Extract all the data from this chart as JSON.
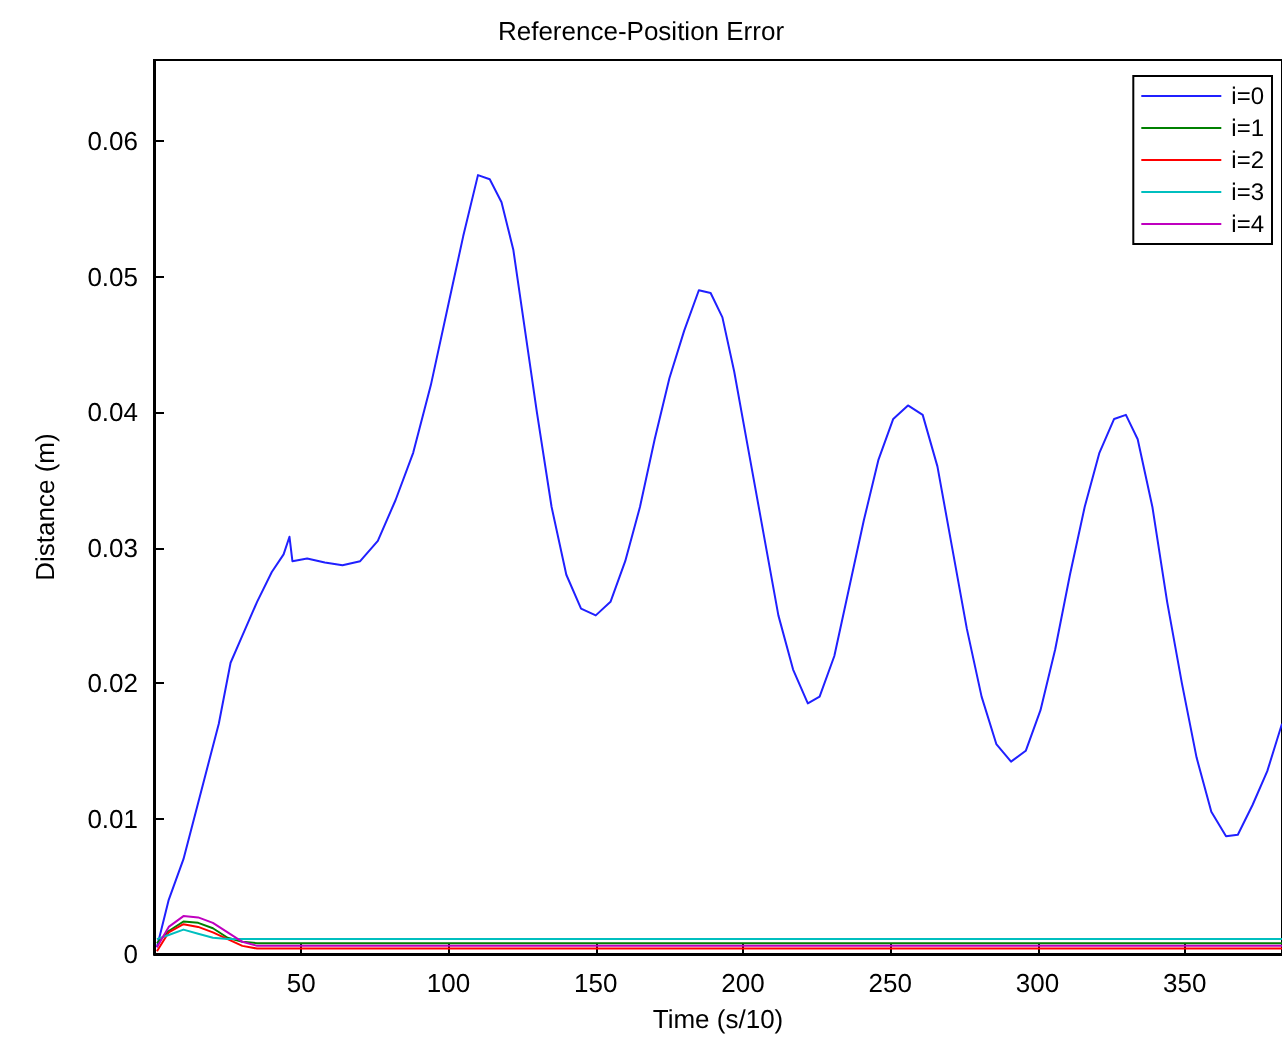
{
  "chart_data": {
    "type": "line",
    "title": "Reference-Position Error",
    "xlabel": "Time (s/10)",
    "ylabel": "Distance (m)",
    "xlim": [
      0,
      383
    ],
    "xticks": [
      50,
      100,
      150,
      200,
      250,
      300,
      350
    ],
    "ylim": [
      0,
      0.066
    ],
    "yticks": [
      0,
      0.01,
      0.02,
      0.03,
      0.04,
      0.05,
      0.06
    ],
    "grid": false,
    "legend": "top right",
    "marker": "none",
    "line_style": "solid",
    "series": [
      {
        "name": "i=0",
        "color": "#2020ff",
        "x": [
          1,
          5,
          10,
          16,
          22,
          26,
          30,
          35,
          40,
          44,
          46,
          47,
          52,
          58,
          64,
          70,
          76,
          82,
          88,
          94,
          100,
          105,
          110,
          114,
          118,
          122,
          126,
          130,
          135,
          140,
          145,
          150,
          155,
          160,
          165,
          170,
          175,
          180,
          185,
          189,
          193,
          197,
          202,
          207,
          212,
          217,
          222,
          226,
          231,
          236,
          241,
          246,
          251,
          256,
          261,
          266,
          271,
          276,
          281,
          286,
          291,
          296,
          301,
          306,
          311,
          316,
          321,
          326,
          330,
          334,
          339,
          344,
          349,
          354,
          359,
          364,
          368,
          373,
          378,
          383
        ],
        "values": [
          0.0005,
          0.004,
          0.007,
          0.012,
          0.017,
          0.0215,
          0.0235,
          0.026,
          0.0282,
          0.0295,
          0.0308,
          0.029,
          0.0292,
          0.0289,
          0.0287,
          0.029,
          0.0305,
          0.0335,
          0.037,
          0.042,
          0.048,
          0.053,
          0.0575,
          0.0572,
          0.0555,
          0.052,
          0.046,
          0.04,
          0.033,
          0.028,
          0.0255,
          0.025,
          0.026,
          0.029,
          0.033,
          0.038,
          0.0425,
          0.046,
          0.049,
          0.0488,
          0.047,
          0.043,
          0.037,
          0.031,
          0.025,
          0.021,
          0.0185,
          0.019,
          0.022,
          0.027,
          0.032,
          0.0365,
          0.0395,
          0.0405,
          0.0398,
          0.036,
          0.03,
          0.024,
          0.019,
          0.0155,
          0.0142,
          0.015,
          0.018,
          0.0225,
          0.028,
          0.033,
          0.037,
          0.0395,
          0.0398,
          0.038,
          0.033,
          0.026,
          0.02,
          0.0145,
          0.0105,
          0.0087,
          0.0088,
          0.011,
          0.0135,
          0.017
        ]
      },
      {
        "name": "i=1",
        "color": "#008000",
        "x": [
          1,
          5,
          10,
          15,
          20,
          25,
          30,
          35,
          60,
          100,
          150,
          200,
          250,
          300,
          350,
          383
        ],
        "values": [
          0.0008,
          0.0017,
          0.0024,
          0.0023,
          0.0019,
          0.0012,
          0.0009,
          0.0008,
          0.0008,
          0.0008,
          0.0008,
          0.0008,
          0.0008,
          0.0008,
          0.0008,
          0.0008
        ]
      },
      {
        "name": "i=2",
        "color": "#ff0000",
        "x": [
          1,
          5,
          10,
          15,
          20,
          25,
          30,
          35,
          60,
          100,
          150,
          200,
          250,
          300,
          350,
          383
        ],
        "values": [
          0.0002,
          0.0016,
          0.0022,
          0.002,
          0.0016,
          0.0011,
          0.0006,
          0.0004,
          0.0004,
          0.0004,
          0.0004,
          0.0004,
          0.0004,
          0.0004,
          0.0004,
          0.0004
        ]
      },
      {
        "name": "i=3",
        "color": "#00bfbf",
        "x": [
          1,
          5,
          10,
          15,
          20,
          25,
          30,
          35,
          60,
          100,
          150,
          200,
          250,
          300,
          350,
          383
        ],
        "values": [
          0.0011,
          0.0014,
          0.0018,
          0.0015,
          0.0012,
          0.0011,
          0.0011,
          0.0011,
          0.0011,
          0.0011,
          0.0011,
          0.0011,
          0.0011,
          0.0011,
          0.0011,
          0.0011
        ]
      },
      {
        "name": "i=4",
        "color": "#bf00bf",
        "x": [
          1,
          5,
          10,
          15,
          20,
          25,
          30,
          35,
          60,
          100,
          150,
          200,
          250,
          300,
          350,
          383
        ],
        "values": [
          0.0005,
          0.002,
          0.0028,
          0.0027,
          0.0023,
          0.0016,
          0.0009,
          0.0006,
          0.0006,
          0.0006,
          0.0006,
          0.0006,
          0.0006,
          0.0006,
          0.0006,
          0.0006
        ]
      }
    ]
  }
}
